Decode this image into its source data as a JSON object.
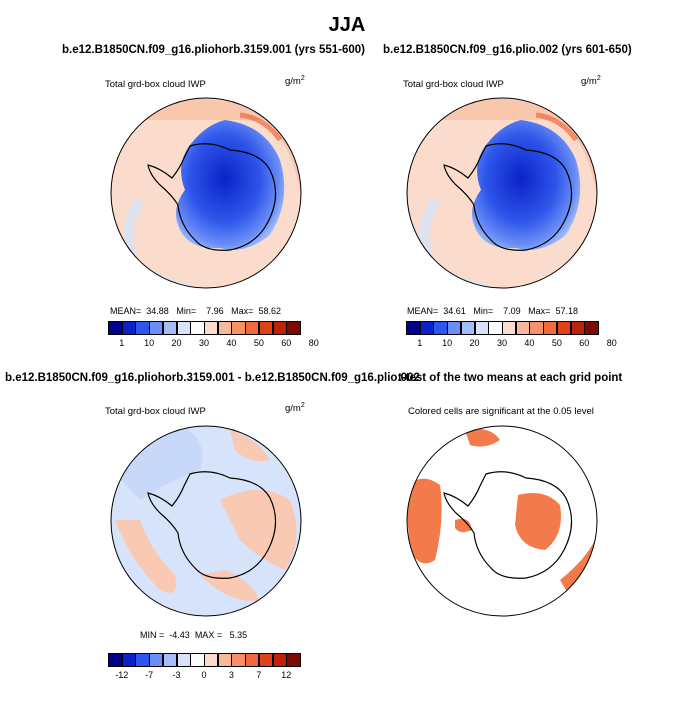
{
  "main_title": "JJA",
  "panels": {
    "p1": {
      "title": "b.e12.B1850CN.f09_g16.pliohorb.3159.001 (yrs 551-600)",
      "field": "Total grd-box cloud IWP",
      "units": "g/m",
      "units_exp": "2",
      "stats": {
        "mean_label": "MEAN=",
        "mean": "34.88",
        "min_label": "Min=",
        "min": "7.96",
        "max_label": "Max=",
        "max": "58.62"
      }
    },
    "p2": {
      "title": "b.e12.B1850CN.f09_g16.plio.002 (yrs 601-650)",
      "field": "Total grd-box cloud IWP",
      "units": "g/m",
      "units_exp": "2",
      "stats": {
        "mean_label": "MEAN=",
        "mean": "34.61",
        "min_label": "Min=",
        "min": "7.09",
        "max_label": "Max=",
        "max": "57.18"
      }
    },
    "p3": {
      "title": "b.e12.B1850CN.f09_g16.pliohorb.3159.001 - b.e12.B1850CN.f09_g16.plio.002",
      "field": "Total grd-box cloud IWP",
      "units": "g/m",
      "units_exp": "2",
      "stats": {
        "min_label": "MIN =",
        "min": "-4.43",
        "max_label": "MAX =",
        "max": "5.35"
      }
    },
    "p4": {
      "title": "t-test of the two means at each grid point",
      "subtitle": "Colored cells are significant at the 0.05 level"
    }
  },
  "colorbars": {
    "abs": {
      "colors": [
        "#00008c",
        "#0a22c8",
        "#2e56ea",
        "#6a8ef5",
        "#a4bff8",
        "#d6e3fa",
        "#fcfcfc",
        "#fbdccc",
        "#f8b899",
        "#f59068",
        "#f06a3c",
        "#df4214",
        "#bd2206",
        "#7d0a00"
      ],
      "ticks": [
        "1",
        "10",
        "20",
        "30",
        "40",
        "50",
        "60",
        "80"
      ]
    },
    "diff": {
      "colors": [
        "#00008c",
        "#0a22c8",
        "#2e56ea",
        "#6a8ef5",
        "#a4bff8",
        "#d6e3fa",
        "#fcfcfc",
        "#fbdccc",
        "#f8b899",
        "#f59068",
        "#f06a3c",
        "#df4214",
        "#bd2206",
        "#7d0a00"
      ],
      "ticks": [
        "-12",
        "-7",
        "-3",
        "0",
        "3",
        "7",
        "12"
      ]
    }
  },
  "map_colors": {
    "ocean_abs": "#fbdccc",
    "ocean_deep": "#f8c4ab",
    "ice_low": "#2e56ea",
    "ice_core": "#0a22c8",
    "diff_blue": "#c7d8f8",
    "diff_red": "#f9c9b3",
    "signif": "#f37a4a"
  }
}
